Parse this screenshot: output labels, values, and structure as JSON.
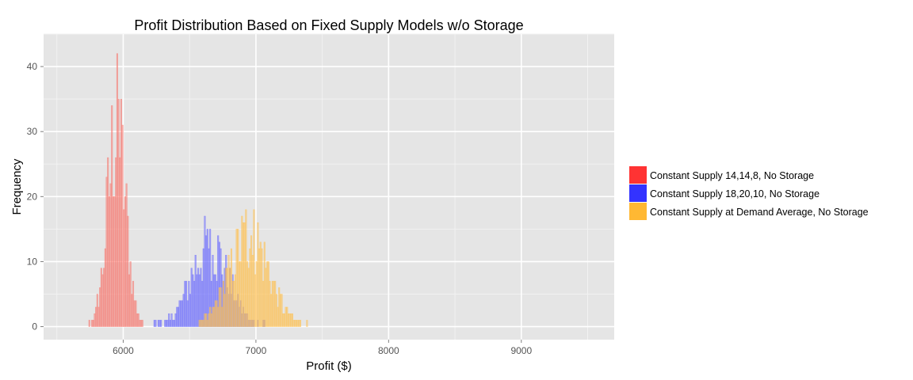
{
  "chart_data": {
    "type": "bar",
    "subtype": "overlaid-histogram",
    "title": "Profit Distribution Based on Fixed Supply Models w/o Storage",
    "xlabel": "Profit ($)",
    "ylabel": "Frequency",
    "xlim": [
      5400,
      9700
    ],
    "ylim": [
      -2,
      45
    ],
    "xticks": [
      6000,
      7000,
      8000,
      9000
    ],
    "yticks": [
      0,
      10,
      20,
      30,
      40
    ],
    "grid": true,
    "legend_position": "right",
    "bin_width": 10,
    "series": [
      {
        "name": "Constant Supply 14,14,8, No Storage",
        "color": "#f8766d",
        "legend_color": "#ff3333",
        "center": 5950,
        "spread": 70,
        "x_range": [
          5620,
          6280
        ],
        "peak": 41
      },
      {
        "name": "Constant Supply 18,20,10, No Storage",
        "color": "#6666ff",
        "legend_color": "#3333ff",
        "center": 6650,
        "spread": 140,
        "x_range": [
          5950,
          7150
        ],
        "peak": 17
      },
      {
        "name": "Constant Supply at Demand Average, No Storage",
        "color": "#ffc04d",
        "legend_color": "#ffb833",
        "center": 6950,
        "spread": 150,
        "x_range": [
          6550,
          7450
        ],
        "peak": 19
      }
    ]
  }
}
